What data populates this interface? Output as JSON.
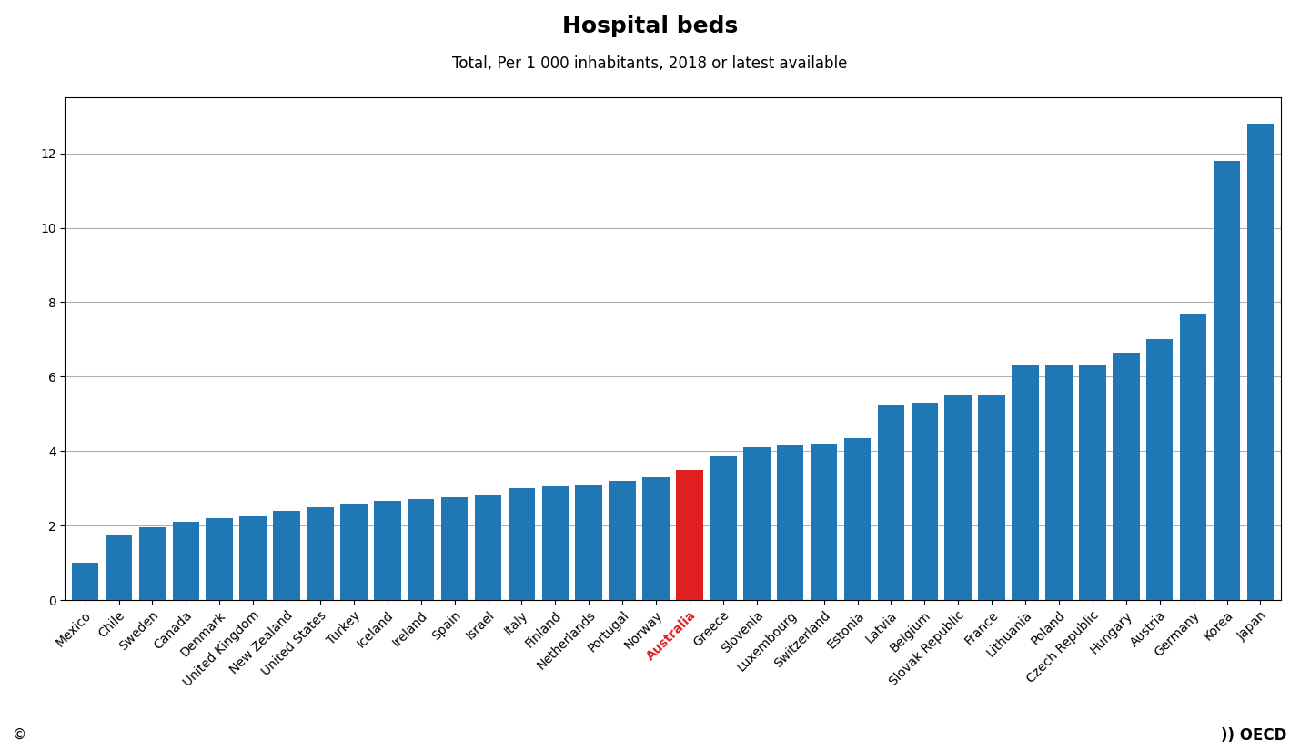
{
  "chart_data": {
    "type": "bar",
    "title": "Hospital beds",
    "subtitle": "Total, Per 1 000 inhabitants, 2018 or latest available",
    "categories": [
      "Mexico",
      "Chile",
      "Sweden",
      "Canada",
      "Denmark",
      "United Kingdom",
      "New Zealand",
      "United States",
      "Turkey",
      "Iceland",
      "Ireland",
      "Spain",
      "Israel",
      "Italy",
      "Finland",
      "Netherlands",
      "Portugal",
      "Norway",
      "Australia",
      "Greece",
      "Slovenia",
      "Luxembourg",
      "Switzerland",
      "Estonia",
      "Latvia",
      "Belgium",
      "Slovak Republic",
      "France",
      "Lithuania",
      "Poland",
      "Czech Republic",
      "Hungary",
      "Austria",
      "Germany",
      "Korea",
      "Japan"
    ],
    "values": [
      1.0,
      1.75,
      1.95,
      2.1,
      2.2,
      2.25,
      2.4,
      2.5,
      2.6,
      2.65,
      2.7,
      2.75,
      2.8,
      3.0,
      3.05,
      3.1,
      3.2,
      3.3,
      3.5,
      3.85,
      4.1,
      4.15,
      4.2,
      4.35,
      5.25,
      5.3,
      5.5,
      5.5,
      6.3,
      6.3,
      6.3,
      6.65,
      7.0,
      7.7,
      11.8,
      12.8
    ],
    "colors": [
      "#1f77b4",
      "#1f77b4",
      "#1f77b4",
      "#1f77b4",
      "#1f77b4",
      "#1f77b4",
      "#1f77b4",
      "#1f77b4",
      "#1f77b4",
      "#1f77b4",
      "#1f77b4",
      "#1f77b4",
      "#1f77b4",
      "#1f77b4",
      "#1f77b4",
      "#1f77b4",
      "#1f77b4",
      "#1f77b4",
      "#e02020",
      "#1f77b4",
      "#1f77b4",
      "#1f77b4",
      "#1f77b4",
      "#1f77b4",
      "#1f77b4",
      "#1f77b4",
      "#1f77b4",
      "#1f77b4",
      "#1f77b4",
      "#1f77b4",
      "#1f77b4",
      "#1f77b4",
      "#1f77b4",
      "#1f77b4",
      "#1f77b4",
      "#1f77b4"
    ],
    "ylim": [
      0,
      13.5
    ],
    "yticks": [
      0,
      2,
      4,
      6,
      8,
      10,
      12
    ],
    "grid": true,
    "annotations": [
      "©",
      ")) OECD"
    ]
  }
}
